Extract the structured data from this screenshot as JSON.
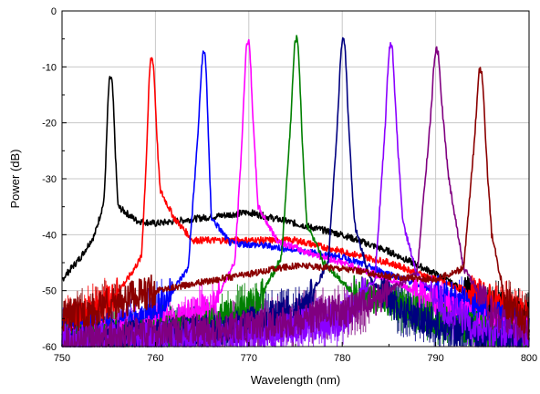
{
  "chart_data": {
    "type": "line",
    "title": "",
    "xlabel": "Wavelength (nm)",
    "ylabel": "Power (dB)",
    "xlim": [
      750,
      800
    ],
    "ylim": [
      -60,
      0
    ],
    "xticks": [
      750,
      760,
      770,
      780,
      790,
      800
    ],
    "yticks": [
      0,
      -10,
      -20,
      -30,
      -40,
      -50,
      -60
    ],
    "grid": true,
    "legend": "none",
    "series": [
      {
        "color": "#000000",
        "peak_x": 755.2,
        "peak_y": -12,
        "values": [
          [
            750,
            -48
          ],
          [
            752,
            -44
          ],
          [
            753.5,
            -40
          ],
          [
            754.5,
            -34
          ],
          [
            755.2,
            -12
          ],
          [
            756,
            -35
          ],
          [
            758,
            -37.5
          ],
          [
            760,
            -38
          ],
          [
            765,
            -37
          ],
          [
            770,
            -36
          ],
          [
            775,
            -38
          ],
          [
            780,
            -40
          ],
          [
            785,
            -43
          ],
          [
            790,
            -47
          ],
          [
            795,
            -52
          ],
          [
            800,
            -55
          ]
        ]
      },
      {
        "color": "#ff0000",
        "peak_x": 759.6,
        "peak_y": -8.5,
        "values": [
          [
            750,
            -56
          ],
          [
            755,
            -52
          ],
          [
            757,
            -48
          ],
          [
            758.5,
            -44
          ],
          [
            759.6,
            -8.5
          ],
          [
            760.5,
            -32
          ],
          [
            762,
            -37
          ],
          [
            764,
            -41
          ],
          [
            770,
            -41
          ],
          [
            775,
            -41
          ],
          [
            780,
            -43
          ],
          [
            785,
            -45
          ],
          [
            790,
            -48
          ],
          [
            795,
            -51
          ],
          [
            800,
            -55
          ]
        ]
      },
      {
        "color": "#0000ff",
        "peak_x": 765.2,
        "peak_y": -7.5,
        "values": [
          [
            750,
            -58
          ],
          [
            758,
            -56
          ],
          [
            761,
            -52
          ],
          [
            763.5,
            -46
          ],
          [
            765.2,
            -7.5
          ],
          [
            766,
            -37
          ],
          [
            768,
            -41.5
          ],
          [
            772,
            -42
          ],
          [
            776,
            -43
          ],
          [
            780,
            -44
          ],
          [
            785,
            -47
          ],
          [
            790,
            -50
          ],
          [
            795,
            -54
          ],
          [
            800,
            -57
          ]
        ]
      },
      {
        "color": "#ff00ff",
        "peak_x": 769.9,
        "peak_y": -5.5,
        "values": [
          [
            750,
            -59
          ],
          [
            760,
            -57
          ],
          [
            766,
            -53
          ],
          [
            768.5,
            -45
          ],
          [
            769.9,
            -5.5
          ],
          [
            771,
            -35
          ],
          [
            773,
            -41
          ],
          [
            776,
            -43
          ],
          [
            780,
            -45
          ],
          [
            785,
            -48
          ],
          [
            790,
            -52
          ],
          [
            795,
            -56
          ],
          [
            800,
            -58
          ]
        ]
      },
      {
        "color": "#008000",
        "peak_x": 775.1,
        "peak_y": -5,
        "values": [
          [
            750,
            -59
          ],
          [
            765,
            -57
          ],
          [
            771,
            -52
          ],
          [
            773.5,
            -44
          ],
          [
            775.1,
            -5
          ],
          [
            776.2,
            -38
          ],
          [
            778,
            -45
          ],
          [
            781,
            -50
          ],
          [
            785,
            -52
          ],
          [
            790,
            -55
          ],
          [
            795,
            -57
          ],
          [
            800,
            -59
          ]
        ]
      },
      {
        "color": "#000080",
        "peak_x": 780.1,
        "peak_y": -5,
        "values": [
          [
            750,
            -59
          ],
          [
            768,
            -57
          ],
          [
            776,
            -53
          ],
          [
            778.5,
            -45
          ],
          [
            780.1,
            -5
          ],
          [
            781.3,
            -38
          ],
          [
            783,
            -48
          ],
          [
            786,
            -53
          ],
          [
            790,
            -56
          ],
          [
            795,
            -58
          ],
          [
            800,
            -59
          ]
        ]
      },
      {
        "color": "#8b00ff",
        "peak_x": 785.2,
        "peak_y": -6,
        "values": [
          [
            750,
            -59
          ],
          [
            770,
            -58
          ],
          [
            780,
            -55
          ],
          [
            783.5,
            -48
          ],
          [
            785.2,
            -6
          ],
          [
            786.5,
            -38
          ],
          [
            788,
            -47
          ],
          [
            791,
            -53
          ],
          [
            795,
            -57
          ],
          [
            800,
            -58
          ]
        ]
      },
      {
        "color": "#800080",
        "peak_x": 790.1,
        "peak_y": -7,
        "values": [
          [
            750,
            -59
          ],
          [
            772,
            -56
          ],
          [
            782,
            -53
          ],
          [
            788,
            -47
          ],
          [
            790.1,
            -7
          ],
          [
            791.4,
            -30
          ],
          [
            793,
            -46
          ],
          [
            796,
            -54
          ],
          [
            800,
            -57
          ]
        ]
      },
      {
        "color": "#8b0000",
        "peak_x": 794.8,
        "peak_y": -10.5,
        "values": [
          [
            750,
            -55
          ],
          [
            760,
            -50
          ],
          [
            770,
            -47
          ],
          [
            775,
            -45.5
          ],
          [
            780,
            -46
          ],
          [
            785,
            -47.5
          ],
          [
            790,
            -48
          ],
          [
            793,
            -46
          ],
          [
            794.8,
            -10.5
          ],
          [
            796,
            -40
          ],
          [
            797.5,
            -52
          ],
          [
            800,
            -56
          ]
        ]
      }
    ]
  }
}
